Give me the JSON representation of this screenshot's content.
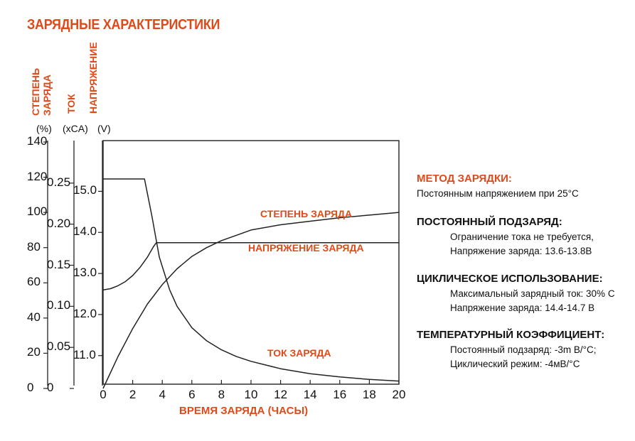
{
  "colors": {
    "accent": "#e04a1a",
    "text": "#111111",
    "line": "#222222"
  },
  "chart_data": {
    "type": "line",
    "title": "ЗАРЯДНЫЕ ХАРАКТЕРИСТИКИ",
    "xlabel": "ВРЕМЯ ЗАРЯДА (ЧАСЫ)",
    "xlim": [
      0,
      20
    ],
    "x_ticks": [
      "0",
      "2",
      "4",
      "6",
      "8",
      "10",
      "12",
      "14",
      "16",
      "18",
      "20"
    ],
    "axes": [
      {
        "label_line1": "СТЕПЕНЬ",
        "label_line2": "ЗАРЯДА",
        "unit": "(%)",
        "ticks": [
          "0",
          "20",
          "40",
          "60",
          "80",
          "100",
          "120",
          "140"
        ],
        "range": [
          0,
          140
        ]
      },
      {
        "label": "ТОК",
        "unit": "(xCA)",
        "ticks": [
          "0",
          "0.05",
          "0.10",
          "0.15",
          "0.20",
          "0.25"
        ],
        "range": [
          0,
          0.3
        ]
      },
      {
        "label": "НАПРЯЖЕНИЕ",
        "unit": "(V)",
        "ticks": [
          "11.0",
          "12.0",
          "13.0",
          "14.0",
          "15.0"
        ],
        "range": [
          10.2,
          16.2
        ]
      }
    ],
    "series": [
      {
        "name": "СТЕПЕНЬ ЗАРЯДА",
        "axis": 0,
        "x": [
          0,
          1,
          2,
          3,
          4,
          5,
          6,
          7,
          8,
          9,
          10,
          12,
          14,
          16,
          18,
          20
        ],
        "y": [
          0,
          18,
          34,
          48,
          59,
          68,
          75,
          80,
          84,
          87,
          90,
          93,
          95,
          97,
          98.5,
          100
        ]
      },
      {
        "name": "НАПРЯЖЕНИЕ ЗАРЯДА",
        "axis": 2,
        "x": [
          0,
          0.5,
          1,
          1.5,
          2,
          2.5,
          3,
          3.4,
          3.6,
          5,
          10,
          15,
          20
        ],
        "y": [
          12.6,
          12.63,
          12.7,
          12.8,
          12.95,
          13.15,
          13.4,
          13.65,
          13.75,
          13.75,
          13.75,
          13.75,
          13.75
        ]
      },
      {
        "name": "ТОК ЗАРЯДА",
        "axis": 1,
        "x": [
          0,
          1,
          2,
          2.8,
          3.3,
          3.8,
          4.5,
          5,
          6,
          7,
          8,
          9,
          10,
          12,
          14,
          16,
          18,
          20
        ],
        "y": [
          0.255,
          0.255,
          0.255,
          0.255,
          0.21,
          0.16,
          0.12,
          0.1,
          0.074,
          0.058,
          0.047,
          0.039,
          0.033,
          0.024,
          0.018,
          0.014,
          0.011,
          0.009
        ]
      }
    ]
  },
  "info": {
    "method_title": "МЕТОД ЗАРЯДКИ:",
    "method_text": "Постоянным напряжением при 25°С",
    "float_title": "ПОСТОЯННЫЙ ПОДЗАРЯД:",
    "float_line1": "Ограничение тока не требуется,",
    "float_line2": "Напряжение заряда: 13.6-13.8В",
    "cyclic_title": "ЦИКЛИЧЕСКОЕ ИСПОЛЬЗОВАНИЕ:",
    "cyclic_line1": "Максимальный зарядный ток: 30% С",
    "cyclic_line2": "Напряжение заряда: 14.4-14.7 В",
    "temp_title": "ТЕМПЕРАТУРНЫЙ КОЭФФИЦИЕНТ:",
    "temp_line1": "Постоянный подзаряд: -3m В/°С;",
    "temp_line2": "Циклический режим: -4мВ/°С"
  }
}
